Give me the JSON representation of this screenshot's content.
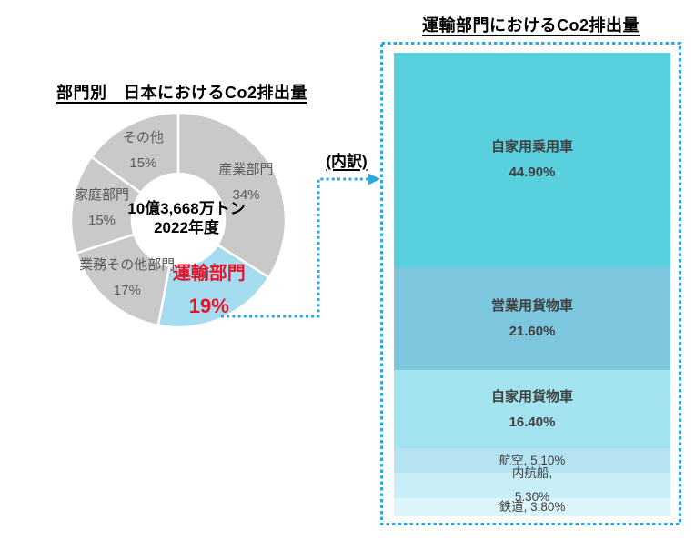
{
  "connector": {
    "label": "(内訳)",
    "color": "#29A9E0"
  },
  "colors": {
    "background": "#FFFFFF",
    "title_text": "#000000",
    "border_blue": "#29A9E0",
    "pie_label_text": "#595959",
    "pie_gray": "#C9C9C9",
    "pie_highlight_slice": "#A5DCEF",
    "pie_highlight_text": "#E8152A",
    "bar_label_text": "#404040"
  },
  "chart_data": [
    {
      "type": "pie",
      "subtype": "donut",
      "title": "部門別　日本におけるCo2排出量",
      "center_label": [
        "10億3,668万トン",
        "2022年度"
      ],
      "legend_position": "none",
      "slices": [
        {
          "key": "industry",
          "label": "産業部門",
          "value": 34,
          "display": "34%",
          "color": "#C9C9C9",
          "highlight": false
        },
        {
          "key": "transport",
          "label": "運輸部門",
          "value": 19,
          "display": "19%",
          "color": "#A5DCEF",
          "highlight": true
        },
        {
          "key": "business-other",
          "label": "業務その他部門",
          "value": 17,
          "display": "17%",
          "color": "#C9C9C9",
          "highlight": false
        },
        {
          "key": "household",
          "label": "家庭部門",
          "value": 15,
          "display": "15%",
          "color": "#C9C9C9",
          "highlight": false
        },
        {
          "key": "other",
          "label": "その他",
          "value": 15,
          "display": "15%",
          "color": "#C9C9C9",
          "highlight": false
        }
      ]
    },
    {
      "type": "bar",
      "subtype": "stacked-column",
      "title": "運輸部門におけるCo2排出量",
      "ylim": [
        0,
        100
      ],
      "segments": [
        {
          "key": "private-passenger-cars",
          "label": "自家用乗用車",
          "value": 44.9,
          "display": "44.90%",
          "color": "#59D0DE",
          "label_style": "two-line"
        },
        {
          "key": "commercial-trucks",
          "label": "営業用貨物車",
          "value": 21.6,
          "display": "21.60%",
          "color": "#7CC6DE",
          "label_style": "two-line"
        },
        {
          "key": "private-trucks",
          "label": "自家用貨物車",
          "value": 16.4,
          "display": "16.40%",
          "color": "#A3E3F0",
          "label_style": "two-line"
        },
        {
          "key": "aviation",
          "label": "航空",
          "value": 5.1,
          "display": "5.10%",
          "color": "#B5E3F1",
          "label_style": "inline"
        },
        {
          "key": "coastal-shipping",
          "label": "内航船",
          "value": 5.3,
          "display": "5.30%",
          "color": "#C8EEF8",
          "label_style": "inline-wrapped"
        },
        {
          "key": "railways",
          "label": "鉄道",
          "value": 3.8,
          "display": "3.80%",
          "color": "#DCF5FB",
          "label_style": "inline"
        }
      ]
    }
  ]
}
